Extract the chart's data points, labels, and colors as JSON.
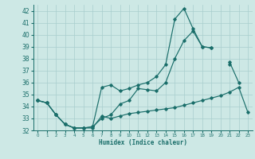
{
  "xlabel": "Humidex (Indice chaleur)",
  "background_color": "#cde8e5",
  "grid_color": "#a8cece",
  "line_color": "#1a6e6a",
  "xlim": [
    -0.5,
    23.5
  ],
  "ylim": [
    32,
    42.5
  ],
  "yticks": [
    32,
    33,
    34,
    35,
    36,
    37,
    38,
    39,
    40,
    41,
    42
  ],
  "xticks": [
    0,
    1,
    2,
    3,
    4,
    5,
    6,
    7,
    8,
    9,
    10,
    11,
    12,
    13,
    14,
    15,
    16,
    17,
    18,
    19,
    20,
    21,
    22,
    23
  ],
  "series1_x": [
    0,
    1,
    2,
    3,
    4,
    5,
    6,
    7,
    8,
    9,
    10,
    11,
    12,
    13,
    14,
    15,
    16,
    17,
    18,
    19,
    20,
    21,
    22,
    23
  ],
  "series1_y": [
    34.5,
    34.3,
    33.3,
    32.5,
    32.2,
    32.2,
    32.2,
    33.2,
    33.0,
    33.2,
    33.4,
    33.5,
    33.6,
    33.7,
    33.8,
    33.9,
    34.1,
    34.3,
    34.5,
    34.7,
    34.9,
    35.2,
    35.6,
    33.5
  ],
  "series2_x": [
    0,
    1,
    2,
    3,
    4,
    5,
    6,
    7,
    8,
    9,
    10,
    11,
    12,
    13,
    14,
    15,
    16,
    17,
    18,
    19,
    20,
    21,
    22,
    23
  ],
  "series2_y": [
    34.5,
    34.3,
    33.3,
    32.5,
    32.2,
    32.2,
    32.3,
    35.6,
    35.8,
    35.3,
    35.5,
    35.8,
    36.0,
    36.5,
    37.5,
    41.3,
    42.2,
    40.5,
    39.0,
    38.9,
    null,
    37.5,
    null,
    null
  ],
  "series3_x": [
    0,
    1,
    2,
    3,
    4,
    5,
    6,
    7,
    8,
    9,
    10,
    11,
    12,
    13,
    14,
    15,
    16,
    17,
    18,
    19,
    20,
    21,
    22,
    23
  ],
  "series3_y": [
    34.5,
    34.3,
    33.3,
    32.5,
    32.2,
    32.2,
    32.3,
    33.0,
    33.3,
    34.2,
    34.5,
    35.5,
    35.4,
    35.3,
    36.0,
    38.0,
    39.5,
    40.3,
    39.0,
    38.9,
    null,
    37.7,
    36.0,
    null
  ]
}
